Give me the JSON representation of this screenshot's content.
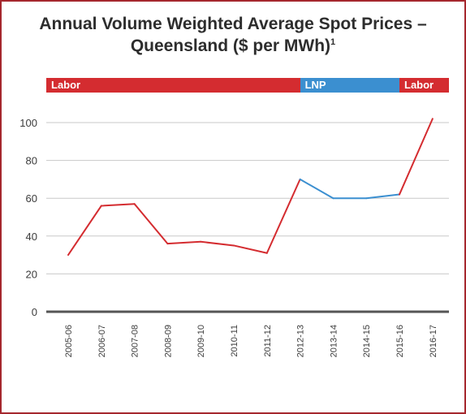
{
  "title_line1": "Annual Volume Weighted Average Spot Prices –",
  "title_line2": "Queensland ($ per MWh)",
  "title_footnote": "1",
  "party_bands": [
    {
      "label": "Labor",
      "color": "#d42c30",
      "from": "2005-06",
      "to": "2012-13"
    },
    {
      "label": "LNP",
      "color": "#3b8fd0",
      "from": "2012-13",
      "to": "2015-16"
    },
    {
      "label": "Labor",
      "color": "#d42c30",
      "from": "2015-16",
      "to": "2016-17"
    }
  ],
  "chart_data": {
    "type": "line",
    "title": "Annual Volume Weighted Average Spot Prices – Queensland ($ per MWh)",
    "xlabel": "",
    "ylabel": "",
    "ylim": [
      0,
      100
    ],
    "yticks": [
      0,
      20,
      40,
      60,
      80,
      100
    ],
    "grid": true,
    "categories": [
      "2005-06",
      "2006-07",
      "2007-08",
      "2008-09",
      "2009-10",
      "2010-11",
      "2011-12",
      "2012-13",
      "2013-14",
      "2014-15",
      "2015-16",
      "2016-17"
    ],
    "values": [
      30,
      56,
      57,
      36,
      37,
      35,
      31,
      70,
      60,
      60,
      62,
      102
    ],
    "segment_colors": [
      "#d42c30",
      "#d42c30",
      "#d42c30",
      "#d42c30",
      "#d42c30",
      "#d42c30",
      "#d42c30",
      "#3b8fd0",
      "#3b8fd0",
      "#3b8fd0",
      "#d42c30"
    ]
  }
}
